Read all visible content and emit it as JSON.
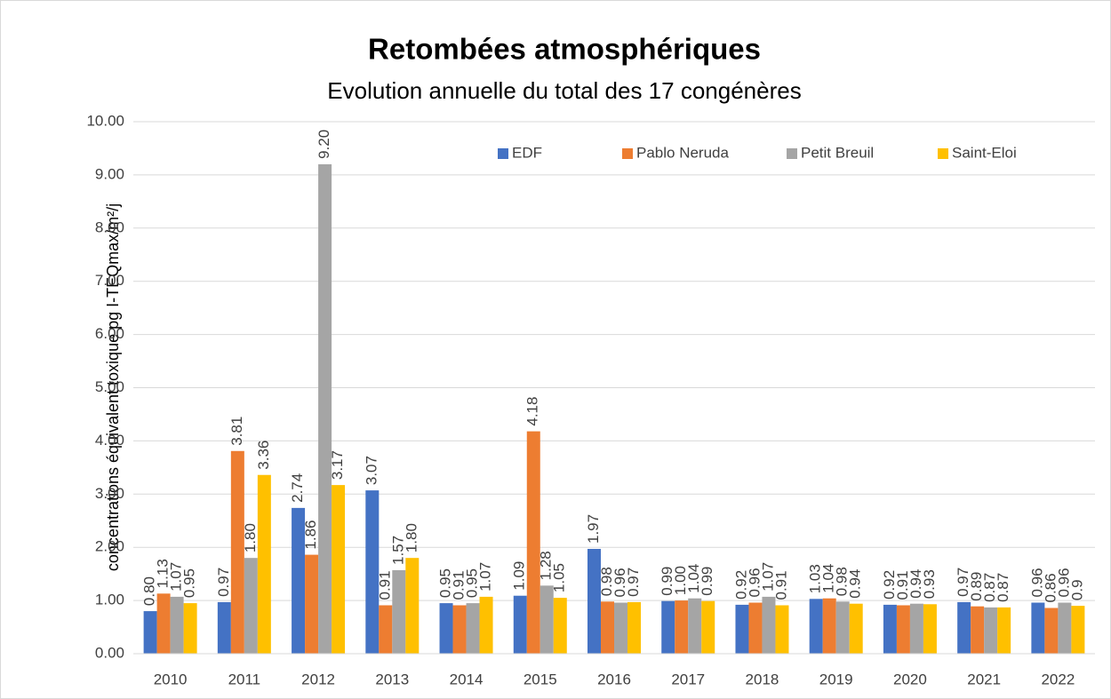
{
  "chart_data": {
    "type": "bar",
    "title": "Retombées atmosphériques",
    "subtitle": "Evolution annuelle du total des 17 congénères",
    "y_label": "concentrations équivalent toxique pg I-TEQmax/m²/j",
    "categories": [
      "2010",
      "2011",
      "2012",
      "2013",
      "2014",
      "2015",
      "2016",
      "2017",
      "2018",
      "2019",
      "2020",
      "2021",
      "2022"
    ],
    "series": [
      {
        "name": "EDF",
        "color": "#4472c4",
        "values": [
          0.8,
          0.97,
          2.74,
          3.07,
          0.95,
          1.09,
          1.97,
          0.99,
          0.92,
          1.03,
          0.92,
          0.97,
          0.96
        ],
        "value_labels": [
          "0.80",
          "0.97",
          "2.74",
          "3.07",
          "0.95",
          "1.09",
          "1.97",
          "0.99",
          "0.92",
          "1.03",
          "0.92",
          "0.97",
          "0.96"
        ]
      },
      {
        "name": "Pablo Neruda",
        "color": "#ed7d31",
        "values": [
          1.13,
          3.81,
          1.86,
          0.91,
          0.91,
          4.18,
          0.98,
          1.0,
          0.96,
          1.04,
          0.91,
          0.89,
          0.86
        ],
        "value_labels": [
          "1.13",
          "3.81",
          "1.86",
          "0.91",
          "0.91",
          "4.18",
          "0.98",
          "1.00",
          "0.96",
          "1.04",
          "0.91",
          "0.89",
          "0.86"
        ]
      },
      {
        "name": "Petit Breuil",
        "color": "#a5a5a5",
        "values": [
          1.07,
          1.8,
          9.2,
          1.57,
          0.95,
          1.28,
          0.96,
          1.04,
          1.07,
          0.98,
          0.94,
          0.87,
          0.96
        ],
        "value_labels": [
          "1.07",
          "1.80",
          "9.20",
          "1.57",
          "0.95",
          "1.28",
          "0.96",
          "1.04",
          "1.07",
          "0.98",
          "0.94",
          "0.87",
          "0.96"
        ]
      },
      {
        "name": "Saint-Eloi",
        "color": "#ffc000",
        "values": [
          0.95,
          3.36,
          3.17,
          1.8,
          1.07,
          1.05,
          0.97,
          0.99,
          0.91,
          0.94,
          0.93,
          0.87,
          0.9
        ],
        "value_labels": [
          "0.95",
          "3.36",
          "3.17",
          "1.80",
          "1.07",
          "1.05",
          "0.97",
          "0.99",
          "0.91",
          "0.94",
          "0.93",
          "0.87",
          "0.9"
        ]
      }
    ],
    "ylim": [
      0,
      10
    ],
    "yticks": [
      {
        "value": 0,
        "label": "0.00"
      },
      {
        "value": 1,
        "label": "1.00"
      },
      {
        "value": 2,
        "label": "2.00"
      },
      {
        "value": 3,
        "label": "3.00"
      },
      {
        "value": 4,
        "label": "4.00"
      },
      {
        "value": 5,
        "label": "5.00"
      },
      {
        "value": 6,
        "label": "6.00"
      },
      {
        "value": 7,
        "label": "7.00"
      },
      {
        "value": 8,
        "label": "8.00"
      },
      {
        "value": 9,
        "label": "9.00"
      },
      {
        "value": 10,
        "label": "10.00"
      }
    ],
    "grid": true,
    "legend": "top-right"
  }
}
